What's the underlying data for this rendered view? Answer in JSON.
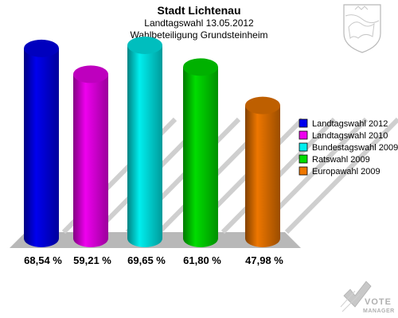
{
  "chart_data": {
    "type": "bar",
    "title": "Stadt Lichtenau",
    "subtitle_line1": "Landtagswahl 13.05.2012",
    "subtitle_line2": "Wahlbeteiligung Grundsteinheim",
    "categories": [
      "Landtagswahl 2012",
      "Landtagswahl 2010",
      "Bundestagswahl 2009",
      "Ratswahl 2009",
      "Europawahl 2009"
    ],
    "values": [
      68.54,
      59.21,
      69.65,
      61.8,
      47.98
    ],
    "value_labels": [
      "68,54 %",
      "59,21 %",
      "69,65 %",
      "61,80 %",
      "47,98 %"
    ],
    "colors": [
      "#0000ee",
      "#ee00ee",
      "#00eeee",
      "#00dd00",
      "#ee7700"
    ],
    "legend_position": "right",
    "grid": true,
    "ylim": [
      0,
      100
    ]
  },
  "watermark": {
    "line1": "VOTE",
    "line2": "MANAGER"
  }
}
